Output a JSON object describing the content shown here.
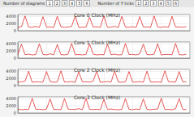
{
  "toolbar": [
    {
      "label": "Number of diagrams",
      "options": [
        "1",
        "2",
        "3",
        "4",
        "5",
        "6"
      ]
    },
    {
      "label": "Number of Y ticks",
      "options": [
        "1",
        "2",
        "3",
        "4",
        "5",
        "6"
      ]
    }
  ],
  "chart_data": [
    {
      "type": "line",
      "title": "Core 0 Clock (MHz)",
      "color": "#e03030",
      "grid": true,
      "tick_labels": "y",
      "xlim": [
        0,
        48
      ],
      "xticks": [
        0,
        8,
        16,
        24,
        32,
        40,
        48
      ],
      "ylim": [
        0,
        4500
      ],
      "yticks": [
        0,
        2000,
        4000
      ],
      "x": [
        0,
        1,
        2,
        3,
        4,
        5,
        6,
        7,
        8,
        9,
        10,
        11,
        12,
        13,
        14,
        15,
        16,
        17,
        18,
        19,
        20,
        21,
        22,
        23,
        24,
        25,
        26,
        27,
        28,
        29,
        30,
        31,
        32,
        33,
        34,
        35,
        36,
        37,
        38,
        39,
        40,
        41,
        42,
        43,
        44,
        45,
        46,
        47
      ],
      "values": [
        900,
        1100,
        4100,
        1000,
        950,
        1200,
        900,
        3900,
        1000,
        1050,
        900,
        4000,
        1100,
        950,
        1000,
        1200,
        4100,
        900,
        1000,
        950,
        3800,
        1000,
        1100,
        900,
        4100,
        950,
        1000,
        1200,
        900,
        4000,
        1000,
        950,
        1100,
        900,
        3900,
        1000,
        1050,
        900,
        4100,
        1000,
        950,
        1100,
        900,
        4000,
        1000,
        1050,
        950,
        1100
      ]
    },
    {
      "type": "line",
      "title": "Core 1 Clock (MHz)",
      "color": "#e03030",
      "grid": true,
      "tick_labels": "y",
      "xlim": [
        0,
        48
      ],
      "xticks": [
        0,
        8,
        16,
        24,
        32,
        40,
        48
      ],
      "ylim": [
        0,
        4500
      ],
      "yticks": [
        0,
        2000,
        4000
      ],
      "x": [
        0,
        1,
        2,
        3,
        4,
        5,
        6,
        7,
        8,
        9,
        10,
        11,
        12,
        13,
        14,
        15,
        16,
        17,
        18,
        19,
        20,
        21,
        22,
        23,
        24,
        25,
        26,
        27,
        28,
        29,
        30,
        31,
        32,
        33,
        34,
        35,
        36,
        37,
        38,
        39,
        40,
        41,
        42,
        43,
        44,
        45,
        46,
        47
      ],
      "values": [
        1000,
        3900,
        950,
        1100,
        900,
        1000,
        4000,
        1050,
        900,
        1200,
        950,
        3800,
        1000,
        900,
        1100,
        4100,
        950,
        1000,
        900,
        1050,
        4000,
        1100,
        900,
        1000,
        950,
        3900,
        1000,
        1100,
        900,
        950,
        4100,
        1000,
        1050,
        900,
        1200,
        3900,
        1000,
        950,
        1100,
        4000,
        900,
        1000,
        1050,
        950,
        4100,
        1000,
        900,
        1100
      ]
    },
    {
      "type": "line",
      "title": "Core 2 Clock (MHz)",
      "color": "#e03030",
      "grid": true,
      "tick_labels": "y",
      "xlim": [
        0,
        48
      ],
      "xticks": [
        0,
        8,
        16,
        24,
        32,
        40,
        48
      ],
      "ylim": [
        0,
        4500
      ],
      "yticks": [
        0,
        2000,
        4000
      ],
      "x": [
        0,
        1,
        2,
        3,
        4,
        5,
        6,
        7,
        8,
        9,
        10,
        11,
        12,
        13,
        14,
        15,
        16,
        17,
        18,
        19,
        20,
        21,
        22,
        23,
        24,
        25,
        26,
        27,
        28,
        29,
        30,
        31,
        32,
        33,
        34,
        35,
        36,
        37,
        38,
        39,
        40,
        41,
        42,
        43,
        44,
        45,
        46,
        47
      ],
      "values": [
        950,
        1000,
        1200,
        4000,
        900,
        1050,
        1000,
        950,
        3900,
        1100,
        900,
        1000,
        4100,
        950,
        1000,
        1100,
        900,
        3800,
        1000,
        1050,
        950,
        1200,
        4000,
        900,
        1000,
        1100,
        950,
        4100,
        1000,
        900,
        1050,
        3900,
        950,
        1000,
        1100,
        900,
        4000,
        1000,
        950,
        1050,
        900,
        4100,
        1100,
        1000,
        950,
        3900,
        1000,
        1050
      ]
    },
    {
      "type": "line",
      "title": "Core 3 Clock (MHz)",
      "color": "#e03030",
      "grid": true,
      "tick_labels": "y",
      "xlim": [
        0,
        48
      ],
      "xticks": [
        0,
        8,
        16,
        24,
        32,
        40,
        48
      ],
      "ylim": [
        0,
        4500
      ],
      "yticks": [
        0,
        2000,
        4000
      ],
      "x": [
        0,
        1,
        2,
        3,
        4,
        5,
        6,
        7,
        8,
        9,
        10,
        11,
        12,
        13,
        14,
        15,
        16,
        17,
        18,
        19,
        20,
        21,
        22,
        23,
        24,
        25,
        26,
        27,
        28,
        29,
        30,
        31,
        32,
        33,
        34,
        35,
        36,
        37,
        38,
        39,
        40,
        41,
        42,
        43,
        44,
        45,
        46,
        47
      ],
      "values": [
        1100,
        900,
        1000,
        950,
        4100,
        1000,
        1050,
        900,
        1100,
        3900,
        950,
        1000,
        900,
        4000,
        1100,
        950,
        1000,
        1200,
        900,
        4100,
        1000,
        950,
        1050,
        900,
        3800,
        1000,
        1100,
        950,
        900,
        1000,
        4000,
        1050,
        900,
        1100,
        950,
        3900,
        1000,
        900,
        1050,
        1100,
        4100,
        950,
        1000,
        900,
        1200,
        4000,
        1000,
        950
      ]
    }
  ]
}
